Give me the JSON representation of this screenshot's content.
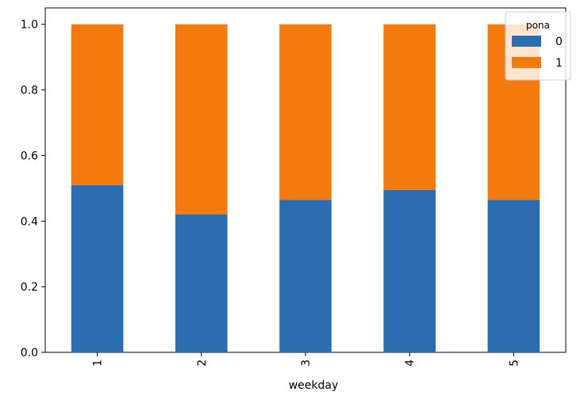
{
  "chart_data": {
    "type": "bar",
    "stacked": true,
    "categories": [
      "1",
      "2",
      "3",
      "4",
      "5"
    ],
    "series": [
      {
        "name": "0",
        "color": "#2a6db0",
        "values": [
          0.51,
          0.42,
          0.465,
          0.495,
          0.465
        ]
      },
      {
        "name": "1",
        "color": "#f57a0e",
        "values": [
          0.49,
          0.58,
          0.535,
          0.505,
          0.535
        ]
      }
    ],
    "title": "",
    "xlabel": "weekday",
    "ylabel": "",
    "ylim": [
      0,
      1.05
    ],
    "yticks": [
      0.0,
      0.2,
      0.4,
      0.6,
      0.8,
      1.0
    ],
    "ytick_labels": [
      "0.0",
      "0.2",
      "0.4",
      "0.6",
      "0.8",
      "1.0"
    ],
    "xtick_rotation": 90,
    "grid": false,
    "legend": {
      "title": "pona",
      "placement": "top-right",
      "entries": [
        "0",
        "1"
      ]
    }
  }
}
